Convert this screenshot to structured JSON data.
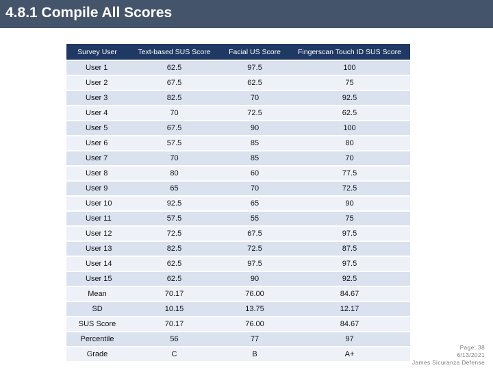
{
  "title": "4.8.1 Compile All Scores",
  "table": {
    "headers": [
      "Survey User",
      "Text-based SUS Score",
      "Facial US Score",
      "Fingerscan Touch ID SUS Score"
    ],
    "user_rows": [
      [
        "User 1",
        "62.5",
        "97.5",
        "100"
      ],
      [
        "User 2",
        "67.5",
        "62.5",
        "75"
      ],
      [
        "User 3",
        "82.5",
        "70",
        "92.5"
      ],
      [
        "User 4",
        "70",
        "72.5",
        "62.5"
      ],
      [
        "User 5",
        "67.5",
        "90",
        "100"
      ],
      [
        "User 6",
        "57.5",
        "85",
        "80"
      ],
      [
        "User 7",
        "70",
        "85",
        "70"
      ],
      [
        "User 8",
        "80",
        "60",
        "77.5"
      ],
      [
        "User 9",
        "65",
        "70",
        "72.5"
      ],
      [
        "User 10",
        "92.5",
        "65",
        "90"
      ],
      [
        "User 11",
        "57.5",
        "55",
        "75"
      ],
      [
        "User 12",
        "72.5",
        "67.5",
        "97.5"
      ],
      [
        "User 13",
        "82.5",
        "72.5",
        "87.5"
      ],
      [
        "User 14",
        "62.5",
        "97.5",
        "97.5"
      ],
      [
        "User 15",
        "62.5",
        "90",
        "92.5"
      ]
    ],
    "stat_rows": [
      [
        "Mean",
        "70.17",
        "76.00",
        "84.67"
      ],
      [
        "SD",
        "10.15",
        "13.75",
        "12.17"
      ],
      [
        "SUS Score",
        "70.17",
        "76.00",
        "84.67"
      ],
      [
        "Percentile",
        "56",
        "77",
        "97"
      ],
      [
        "Grade",
        "C",
        "B",
        "A+"
      ]
    ]
  },
  "footer": {
    "page": "Page: 38",
    "date": "6/13/2021",
    "author": "James Sicuranza Defense"
  }
}
